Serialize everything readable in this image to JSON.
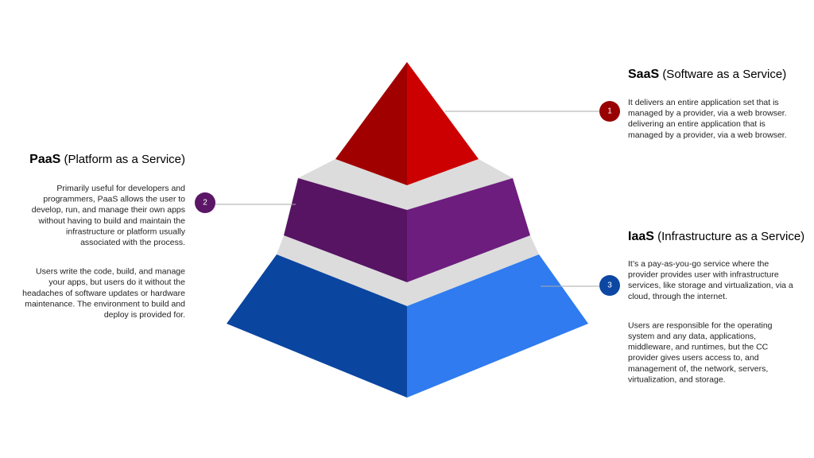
{
  "tiers": [
    {
      "number": "1",
      "abbr": "SaaS",
      "full": "(Software as a Service)",
      "paragraphs": [
        [
          "It delivers an entire application set that is",
          "managed by a provider, via a web browser.",
          "delivering an entire application that is",
          "managed by a provider, via a web browser."
        ]
      ]
    },
    {
      "number": "2",
      "abbr": "PaaS",
      "full": "(Platform as a Service)",
      "paragraphs": [
        [
          "Primarily useful for developers and",
          "programmers, PaaS allows the user to",
          "develop, run, and manage their own apps",
          "without having to build and maintain the",
          "infrastructure or platform usually",
          "associated with the process."
        ],
        [
          "Users write the code, build, and manage",
          "your apps, but users do it without the",
          "headaches of software updates or hardware",
          "maintenance. The environment to build and",
          "deploy is provided for."
        ]
      ]
    },
    {
      "number": "3",
      "abbr": "IaaS",
      "full": "(Infrastructure as a Service)",
      "paragraphs": [
        [
          "It’s a pay-as-you-go service where the",
          "provider provides user with infrastructure",
          "services, like storage and virtualization, via a",
          "cloud, through the internet."
        ],
        [
          "Users are responsible for the operating",
          "system and any data, applications,",
          "middleware, and runtimes, but the CC",
          "provider gives users access to, and",
          "management of, the network, servers,",
          "virtualization, and storage."
        ]
      ]
    }
  ]
}
